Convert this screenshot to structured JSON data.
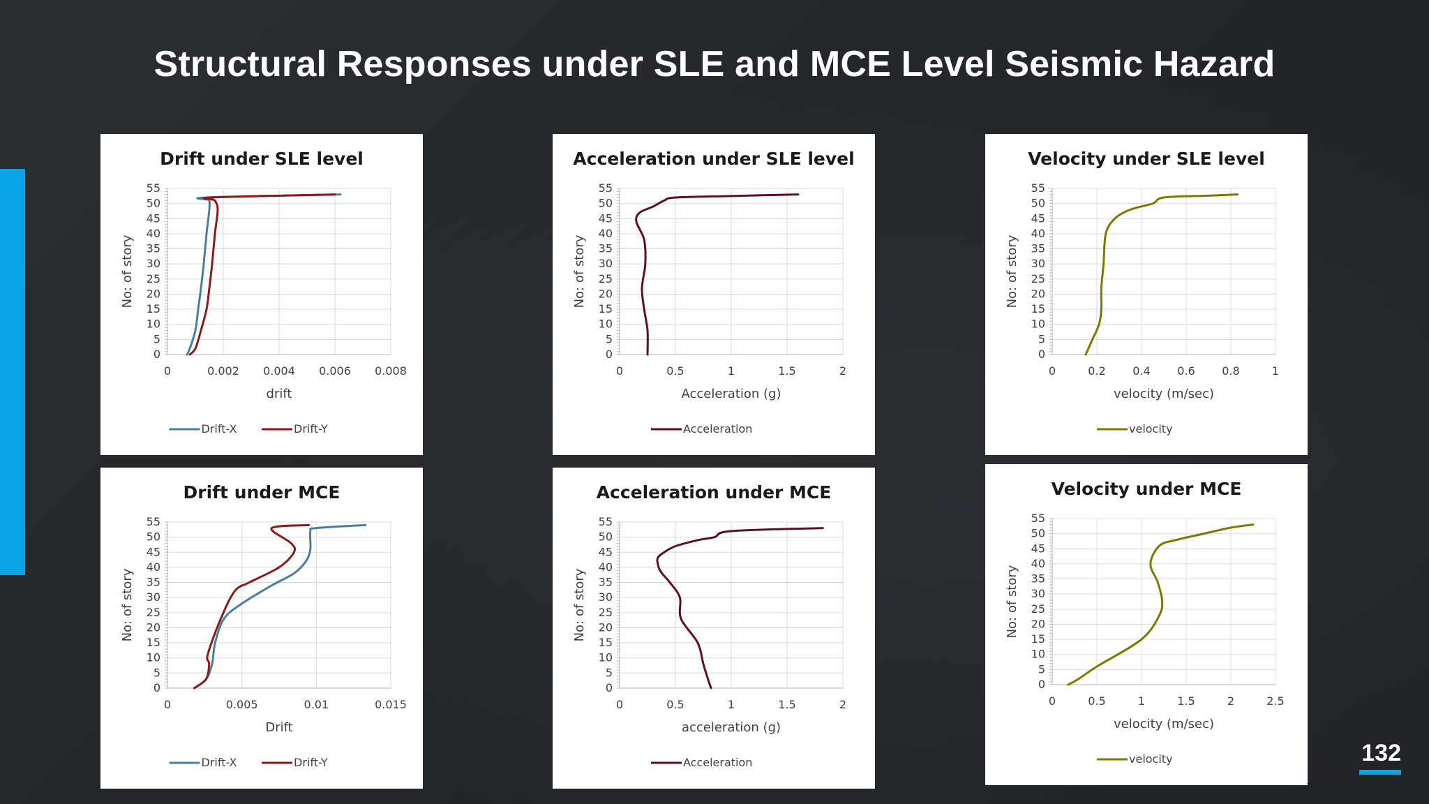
{
  "slide": {
    "title": "Structural Responses under SLE and MCE Level Seismic Hazard",
    "page_number": "132",
    "accent_color": "#0aa3e6"
  },
  "chart_data": [
    {
      "id": "drift-sle",
      "type": "line",
      "title": "Drift under SLE level",
      "xlabel": "drift",
      "ylabel": "No: of story",
      "xlim": [
        0,
        0.008
      ],
      "ylim": [
        0,
        55
      ],
      "xticks": [
        0,
        0.002,
        0.004,
        0.006,
        0.008
      ],
      "xtick_labels": [
        "0",
        "0.002",
        "0.004",
        "0.006",
        "0.008"
      ],
      "yticks": [
        0,
        5,
        10,
        15,
        20,
        25,
        30,
        35,
        40,
        45,
        50,
        55
      ],
      "grid": true,
      "legend": "bottom",
      "series": [
        {
          "name": "Drift-X",
          "color": "#4a7f9c",
          "points": [
            [
              0.0007,
              0
            ],
            [
              0.0008,
              2
            ],
            [
              0.001,
              8
            ],
            [
              0.0011,
              15
            ],
            [
              0.0012,
              22
            ],
            [
              0.0013,
              30
            ],
            [
              0.0014,
              40
            ],
            [
              0.0015,
              48
            ],
            [
              0.0015,
              51
            ],
            [
              0.0014,
              52
            ],
            [
              0.0062,
              53
            ]
          ]
        },
        {
          "name": "Drift-Y",
          "color": "#8b1a1a",
          "points": [
            [
              0.0008,
              0
            ],
            [
              0.001,
              2
            ],
            [
              0.0012,
              8
            ],
            [
              0.0014,
              15
            ],
            [
              0.0015,
              22
            ],
            [
              0.0016,
              30
            ],
            [
              0.0017,
              40
            ],
            [
              0.0018,
              48
            ],
            [
              0.0017,
              51
            ],
            [
              0.0016,
              52
            ],
            [
              0.006,
              53
            ]
          ]
        }
      ]
    },
    {
      "id": "acc-sle",
      "type": "line",
      "title": "Acceleration under SLE level",
      "xlabel": "Acceleration (g)",
      "ylabel": "No: of story",
      "xlim": [
        0,
        2
      ],
      "ylim": [
        0,
        55
      ],
      "xticks": [
        0,
        0.5,
        1,
        1.5,
        2
      ],
      "xtick_labels": [
        "0",
        "0.5",
        "1",
        "1.5",
        "2"
      ],
      "yticks": [
        0,
        5,
        10,
        15,
        20,
        25,
        30,
        35,
        40,
        45,
        50,
        55
      ],
      "grid": true,
      "legend": "bottom",
      "series": [
        {
          "name": "Acceleration",
          "color": "#5c0f2a",
          "points": [
            [
              0.25,
              0
            ],
            [
              0.25,
              8
            ],
            [
              0.22,
              15
            ],
            [
              0.2,
              22
            ],
            [
              0.23,
              30
            ],
            [
              0.22,
              38
            ],
            [
              0.15,
              44
            ],
            [
              0.18,
              47
            ],
            [
              0.3,
              49
            ],
            [
              0.4,
              51
            ],
            [
              0.5,
              52
            ],
            [
              1.0,
              52.5
            ],
            [
              1.6,
              53
            ]
          ]
        }
      ]
    },
    {
      "id": "vel-sle",
      "type": "line",
      "title": "Velocity under SLE level",
      "xlabel": "velocity (m/sec)",
      "ylabel": "No: of story",
      "xlim": [
        0,
        1
      ],
      "ylim": [
        0,
        55
      ],
      "xticks": [
        0,
        0.2,
        0.4,
        0.6,
        0.8,
        1
      ],
      "xtick_labels": [
        "0",
        "0.2",
        "0.4",
        "0.6",
        "0.8",
        "1"
      ],
      "yticks": [
        0,
        5,
        10,
        15,
        20,
        25,
        30,
        35,
        40,
        45,
        50,
        55
      ],
      "grid": true,
      "legend": "bottom",
      "series": [
        {
          "name": "velocity",
          "color": "#7a7a00",
          "points": [
            [
              0.15,
              0
            ],
            [
              0.18,
              5
            ],
            [
              0.21,
              10
            ],
            [
              0.22,
              15
            ],
            [
              0.22,
              22
            ],
            [
              0.23,
              30
            ],
            [
              0.24,
              40
            ],
            [
              0.28,
              45
            ],
            [
              0.35,
              48
            ],
            [
              0.45,
              50
            ],
            [
              0.5,
              52
            ],
            [
              0.7,
              52.6
            ],
            [
              0.83,
              53
            ]
          ]
        }
      ]
    },
    {
      "id": "drift-mce",
      "type": "line",
      "title": "Drift under MCE",
      "xlabel": "Drift",
      "ylabel": "No: of story",
      "xlim": [
        0,
        0.015
      ],
      "ylim": [
        0,
        55
      ],
      "xticks": [
        0,
        0.005,
        0.01,
        0.015
      ],
      "xtick_labels": [
        "0",
        "0.005",
        "0.01",
        "0.015"
      ],
      "yticks": [
        0,
        5,
        10,
        15,
        20,
        25,
        30,
        35,
        40,
        45,
        50,
        55
      ],
      "grid": true,
      "legend": "bottom",
      "series": [
        {
          "name": "Drift-X",
          "color": "#4a7f9c",
          "points": [
            [
              0.0018,
              0
            ],
            [
              0.0026,
              3
            ],
            [
              0.003,
              8
            ],
            [
              0.0032,
              15
            ],
            [
              0.0038,
              23
            ],
            [
              0.005,
              28
            ],
            [
              0.007,
              34
            ],
            [
              0.0085,
              38
            ],
            [
              0.0093,
              42
            ],
            [
              0.0096,
              46
            ],
            [
              0.0096,
              52
            ],
            [
              0.01,
              53
            ],
            [
              0.0133,
              54
            ]
          ]
        },
        {
          "name": "Drift-Y",
          "color": "#8b1a1a",
          "points": [
            [
              0.0018,
              0
            ],
            [
              0.0026,
              3
            ],
            [
              0.0028,
              8
            ],
            [
              0.0027,
              11
            ],
            [
              0.0035,
              22
            ],
            [
              0.0045,
              32
            ],
            [
              0.0055,
              35
            ],
            [
              0.0075,
              40
            ],
            [
              0.0085,
              45
            ],
            [
              0.0083,
              48
            ],
            [
              0.007,
              53
            ],
            [
              0.0095,
              54
            ]
          ]
        }
      ]
    },
    {
      "id": "acc-mce",
      "type": "line",
      "title": "Acceleration under MCE",
      "xlabel": "acceleration (g)",
      "ylabel": "No: of story",
      "xlim": [
        0,
        2
      ],
      "ylim": [
        0,
        55
      ],
      "xticks": [
        0,
        0.5,
        1,
        1.5,
        2
      ],
      "xtick_labels": [
        "0",
        "0.5",
        "1",
        "1.5",
        "2"
      ],
      "yticks": [
        0,
        5,
        10,
        15,
        20,
        25,
        30,
        35,
        40,
        45,
        50,
        55
      ],
      "grid": true,
      "legend": "bottom",
      "series": [
        {
          "name": "Acceleration",
          "color": "#5c0f2a",
          "points": [
            [
              0.82,
              0
            ],
            [
              0.8,
              2
            ],
            [
              0.75,
              8
            ],
            [
              0.7,
              15
            ],
            [
              0.55,
              23
            ],
            [
              0.54,
              30
            ],
            [
              0.45,
              35
            ],
            [
              0.38,
              38
            ],
            [
              0.35,
              40
            ],
            [
              0.34,
              43
            ],
            [
              0.4,
              45
            ],
            [
              0.5,
              47
            ],
            [
              0.7,
              49
            ],
            [
              0.85,
              50
            ],
            [
              1.0,
              52
            ],
            [
              1.82,
              53
            ]
          ]
        }
      ]
    },
    {
      "id": "vel-mce",
      "type": "line",
      "title": "Velocity under MCE",
      "xlabel": "velocity (m/sec)",
      "ylabel": "No: of story",
      "xlim": [
        0,
        2.5
      ],
      "ylim": [
        0,
        55
      ],
      "xticks": [
        0,
        0.5,
        1,
        1.5,
        2,
        2.5
      ],
      "xtick_labels": [
        "0",
        "0.5",
        "1",
        "1.5",
        "2",
        "2.5"
      ],
      "yticks": [
        0,
        5,
        10,
        15,
        20,
        25,
        30,
        35,
        40,
        45,
        50,
        55
      ],
      "grid": true,
      "legend": "bottom",
      "series": [
        {
          "name": "velocity",
          "color": "#7a7a00",
          "points": [
            [
              0.18,
              0
            ],
            [
              0.3,
              2
            ],
            [
              0.5,
              6
            ],
            [
              1.0,
              15
            ],
            [
              1.2,
              23
            ],
            [
              1.23,
              28
            ],
            [
              1.18,
              34
            ],
            [
              1.1,
              40
            ],
            [
              1.2,
              46
            ],
            [
              1.4,
              48
            ],
            [
              1.7,
              50
            ],
            [
              2.0,
              52
            ],
            [
              2.25,
              53
            ]
          ]
        }
      ]
    }
  ]
}
